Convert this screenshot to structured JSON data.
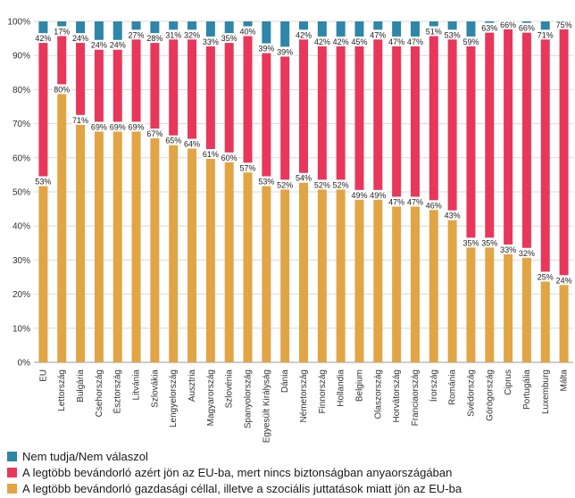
{
  "chart_data": {
    "type": "bar",
    "stacked": true,
    "ylim": [
      0,
      100
    ],
    "yticks": [
      "0%",
      "10%",
      "20%",
      "30%",
      "40%",
      "50%",
      "60%",
      "70%",
      "80%",
      "90%",
      "100%"
    ],
    "categories": [
      "EU",
      "Lettország",
      "Bulgária",
      "Csehország",
      "Észtország",
      "Litvánia",
      "Szlovákia",
      "Lengyelország",
      "Ausztria",
      "Magyarország",
      "Szlovénia",
      "Spanyolország",
      "Egyesült Királyság",
      "Dánia",
      "Németország",
      "Finnország",
      "Hollandia",
      "Belgium",
      "Olaszország",
      "Horvátország",
      "Franciaország",
      "Írország",
      "Románia",
      "Svédország",
      "Görögország",
      "Ciprus",
      "Portugália",
      "Luxemburg",
      "Málta"
    ],
    "series": [
      {
        "name": "A legtöbb bevándorló gazdasági céllal, illetve a szociális juttatások miatt jön az EU-ba",
        "color": "#E1A546",
        "values": [
          53,
          80,
          71,
          69,
          69,
          69,
          67,
          65,
          64,
          61,
          60,
          57,
          53,
          52,
          54,
          52,
          52,
          49,
          49,
          47,
          47,
          46,
          43,
          35,
          35,
          33,
          32,
          25,
          24
        ],
        "labels": [
          "53%",
          "80%",
          "71%",
          "69%",
          "69%",
          "69%",
          "67%",
          "65%",
          "64%",
          "61%",
          "60%",
          "57%",
          "53%",
          "52%",
          "54%",
          "52%",
          "52%",
          "49%",
          "49%",
          "47%",
          "47%",
          "46%",
          "43%",
          "35%",
          "35%",
          "33%",
          "32%",
          "25%",
          "24%"
        ]
      },
      {
        "name": "A legtöbb bevándorló azért jön az EU-ba, mert nincs biztonságban anyaországában",
        "color": "#E8375A",
        "values": [
          42,
          17,
          24,
          24,
          24,
          27,
          28,
          31,
          32,
          33,
          35,
          40,
          39,
          39,
          42,
          42,
          42,
          45,
          47,
          47,
          47,
          51,
          53,
          59,
          63,
          66,
          66,
          71,
          75
        ],
        "labels": [
          "42%",
          "17%",
          "24%",
          "24%",
          "24%",
          "27%",
          "28%",
          "31%",
          "32%",
          "33%",
          "35%",
          "40%",
          "39%",
          "39%",
          "42%",
          "42%",
          "42%",
          "45%",
          "47%",
          "47%",
          "47%",
          "51%",
          "53%",
          "59%",
          "63%",
          "66%",
          "66%",
          "71%",
          "75%"
        ]
      },
      {
        "name": "Nem tudja/Nem válaszol",
        "color": "#2E86A8",
        "values": [
          5,
          3,
          5,
          7,
          7,
          4,
          5,
          4,
          4,
          6,
          5,
          3,
          8,
          9,
          4,
          6,
          6,
          6,
          4,
          6,
          6,
          3,
          4,
          6,
          2,
          1,
          2,
          4,
          1
        ],
        "labels": []
      }
    ]
  }
}
